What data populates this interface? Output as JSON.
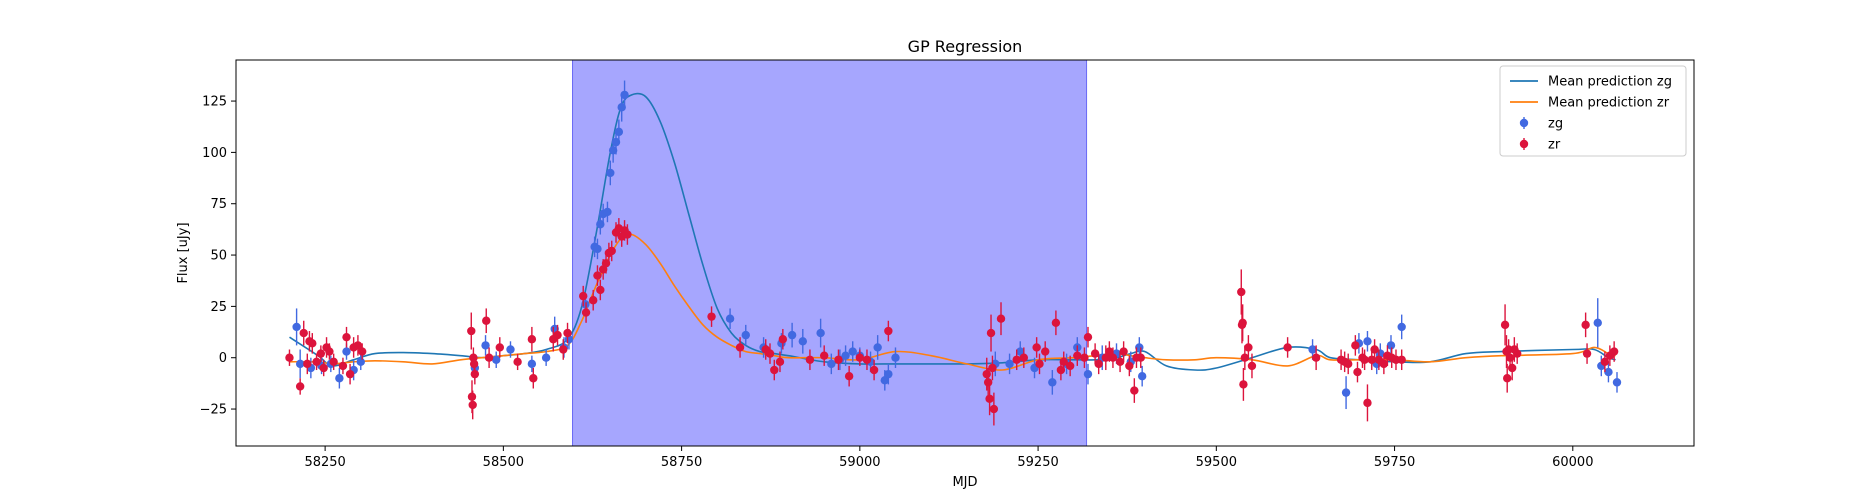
{
  "chart_data": {
    "type": "scatter",
    "title": "GP Regression",
    "xlabel": "MJD",
    "ylabel": "Flux [uJy]",
    "xlim": [
      58125,
      60170
    ],
    "ylim": [
      -43,
      145
    ],
    "xticks": [
      58250,
      58500,
      58750,
      59000,
      59250,
      59500,
      59750,
      60000
    ],
    "yticks": [
      -25,
      0,
      25,
      50,
      75,
      100,
      125
    ],
    "grid": false,
    "legend_position": "top-right",
    "highlight_span": {
      "x0": 58597,
      "x1": 59318,
      "color": "#a6a6fe"
    },
    "lines": [
      {
        "name": "Mean prediction zg",
        "color": "#1f77b4",
        "x": [
          58200,
          58240,
          58260,
          58290,
          58320,
          58360,
          58400,
          58440,
          58470,
          58500,
          58530,
          58560,
          58590,
          58610,
          58630,
          58650,
          58665,
          58680,
          58700,
          58720,
          58740,
          58760,
          58780,
          58800,
          58820,
          58840,
          58860,
          58880,
          58900,
          58950,
          59000,
          59050,
          59100,
          59150,
          59200,
          59250,
          59300,
          59330,
          59360,
          59380,
          59400,
          59430,
          59470,
          59500,
          59550,
          59600,
          59640,
          59660,
          59700,
          59750,
          59800,
          59850,
          59900,
          60000,
          60030,
          60050,
          60060
        ],
        "y": [
          10,
          1,
          -4,
          -1,
          2,
          2.5,
          2,
          1,
          0,
          1,
          2,
          4,
          9,
          25,
          60,
          100,
          122,
          128,
          127,
          115,
          95,
          70,
          45,
          24,
          12,
          6,
          3,
          2,
          1,
          -2,
          -3,
          -3,
          -3,
          -3,
          -2.5,
          -1,
          -1,
          -1,
          0,
          2,
          3,
          -4,
          -6,
          -5,
          0,
          5,
          4,
          0,
          -1,
          -2,
          -2,
          2,
          3,
          4,
          4,
          0,
          -1
        ]
      },
      {
        "name": "Mean prediction zr",
        "color": "#ff7f0e",
        "x": [
          58200,
          58240,
          58260,
          58290,
          58320,
          58360,
          58400,
          58440,
          58470,
          58500,
          58530,
          58560,
          58590,
          58610,
          58630,
          58650,
          58665,
          58680,
          58700,
          58720,
          58740,
          58760,
          58780,
          58800,
          58820,
          58840,
          58860,
          58880,
          58900,
          58950,
          59000,
          59050,
          59100,
          59150,
          59200,
          59250,
          59300,
          59330,
          59360,
          59380,
          59400,
          59430,
          59470,
          59500,
          59550,
          59600,
          59640,
          59660,
          59700,
          59750,
          59800,
          59850,
          59900,
          60000,
          60030,
          60050,
          60060
        ],
        "y": [
          -2,
          -2,
          -3,
          -2,
          -1.5,
          -2,
          -3,
          -1,
          0,
          1,
          2,
          3,
          6,
          18,
          35,
          50,
          58,
          60,
          55,
          46,
          35,
          25,
          16,
          10,
          6,
          3,
          2,
          1,
          0,
          0,
          -1,
          3,
          1,
          -3,
          -6,
          -1,
          0,
          1,
          2,
          1,
          0,
          -1,
          -1,
          0,
          -1,
          -4,
          1,
          -1,
          -1,
          -1,
          -2,
          0,
          1,
          2,
          5,
          2,
          1
        ]
      }
    ],
    "series": [
      {
        "name": "zg",
        "color": "#4169e1",
        "points": [
          [
            58210,
            15,
            9
          ],
          [
            58215,
            -3,
            7
          ],
          [
            58230,
            -5,
            5
          ],
          [
            58245,
            -4,
            4
          ],
          [
            58258,
            -3,
            4
          ],
          [
            58270,
            -10,
            5
          ],
          [
            58280,
            3,
            4
          ],
          [
            58290,
            -6,
            5
          ],
          [
            58300,
            -2,
            4
          ],
          [
            58460,
            -5,
            6
          ],
          [
            58475,
            6,
            5
          ],
          [
            58490,
            -1,
            4
          ],
          [
            58510,
            4,
            4
          ],
          [
            58540,
            -3,
            4
          ],
          [
            58560,
            0,
            4
          ],
          [
            58572,
            14,
            6
          ],
          [
            58585,
            5,
            5
          ],
          [
            58592,
            9,
            5
          ],
          [
            58615,
            26,
            5
          ],
          [
            58628,
            54,
            5
          ],
          [
            58632,
            53,
            5
          ],
          [
            58636,
            65,
            5
          ],
          [
            58640,
            70,
            5
          ],
          [
            58646,
            71,
            5
          ],
          [
            58650,
            90,
            6
          ],
          [
            58654,
            101,
            6
          ],
          [
            58658,
            105,
            6
          ],
          [
            58662,
            110,
            6
          ],
          [
            58666,
            122,
            7
          ],
          [
            58670,
            128,
            7
          ],
          [
            58818,
            19,
            5
          ],
          [
            58840,
            11,
            5
          ],
          [
            58865,
            5,
            5
          ],
          [
            58890,
            7,
            5
          ],
          [
            58905,
            11,
            6
          ],
          [
            58920,
            8,
            6
          ],
          [
            58945,
            12,
            7
          ],
          [
            58960,
            -3,
            5
          ],
          [
            58972,
            -1,
            5
          ],
          [
            58980,
            1,
            5
          ],
          [
            58990,
            3,
            5
          ],
          [
            59000,
            1,
            4
          ],
          [
            59015,
            -2,
            5
          ],
          [
            59025,
            5,
            6
          ],
          [
            59035,
            -11,
            5
          ],
          [
            59040,
            -8,
            5
          ],
          [
            59050,
            0,
            5
          ],
          [
            59190,
            -3,
            6
          ],
          [
            59210,
            -3,
            5
          ],
          [
            59225,
            3,
            5
          ],
          [
            59245,
            -5,
            5
          ],
          [
            59270,
            -12,
            6
          ],
          [
            59290,
            -3,
            5
          ],
          [
            59305,
            5,
            5
          ],
          [
            59320,
            -8,
            5
          ],
          [
            59340,
            0,
            6
          ],
          [
            59360,
            2,
            5
          ],
          [
            59380,
            -2,
            5
          ],
          [
            59392,
            5,
            5
          ],
          [
            59396,
            -9,
            5
          ],
          [
            59635,
            4,
            5
          ],
          [
            59682,
            -17,
            8
          ],
          [
            59700,
            7,
            5
          ],
          [
            59712,
            8,
            5
          ],
          [
            59725,
            -3,
            5
          ],
          [
            59730,
            2,
            5
          ],
          [
            59745,
            6,
            5
          ],
          [
            59760,
            15,
            6
          ],
          [
            60035,
            17,
            12
          ],
          [
            60040,
            -4,
            5
          ],
          [
            60050,
            -7,
            5
          ],
          [
            60062,
            -12,
            5
          ]
        ]
      },
      {
        "name": "zr",
        "color": "#dc143c",
        "points": [
          [
            58200,
            0,
            4
          ],
          [
            58215,
            -14,
            4
          ],
          [
            58220,
            12,
            6
          ],
          [
            58225,
            -3,
            5
          ],
          [
            58228,
            8,
            5
          ],
          [
            58232,
            7,
            5
          ],
          [
            58238,
            -2,
            4
          ],
          [
            58244,
            2,
            4
          ],
          [
            58248,
            -5,
            4
          ],
          [
            58252,
            5,
            5
          ],
          [
            58256,
            3,
            4
          ],
          [
            58262,
            -2,
            4
          ],
          [
            58275,
            -4,
            4
          ],
          [
            58280,
            10,
            5
          ],
          [
            58285,
            -8,
            5
          ],
          [
            58290,
            5,
            5
          ],
          [
            58296,
            6,
            5
          ],
          [
            58302,
            3,
            4
          ],
          [
            58455,
            13,
            9
          ],
          [
            58456,
            -19,
            8
          ],
          [
            58457,
            -23,
            7
          ],
          [
            58458,
            0,
            5
          ],
          [
            58459,
            -3,
            4
          ],
          [
            58460,
            -8,
            5
          ],
          [
            58476,
            18,
            6
          ],
          [
            58480,
            0,
            5
          ],
          [
            58495,
            5,
            5
          ],
          [
            58520,
            -2,
            4
          ],
          [
            58540,
            9,
            6
          ],
          [
            58542,
            -10,
            5
          ],
          [
            58570,
            9,
            6
          ],
          [
            58576,
            11,
            5
          ],
          [
            58584,
            4,
            5
          ],
          [
            58590,
            12,
            5
          ],
          [
            58612,
            30,
            5
          ],
          [
            58616,
            22,
            5
          ],
          [
            58626,
            28,
            5
          ],
          [
            58632,
            40,
            5
          ],
          [
            58636,
            33,
            5
          ],
          [
            58640,
            43,
            5
          ],
          [
            58644,
            46,
            5
          ],
          [
            58648,
            51,
            5
          ],
          [
            58652,
            52,
            5
          ],
          [
            58658,
            61,
            5
          ],
          [
            58662,
            63,
            5
          ],
          [
            58666,
            59,
            5
          ],
          [
            58670,
            62,
            5
          ],
          [
            58674,
            60,
            5
          ],
          [
            58792,
            20,
            5
          ],
          [
            58832,
            5,
            5
          ],
          [
            58868,
            4,
            5
          ],
          [
            58874,
            2,
            5
          ],
          [
            58880,
            -6,
            5
          ],
          [
            58888,
            -2,
            5
          ],
          [
            58892,
            9,
            5
          ],
          [
            58930,
            -1,
            5
          ],
          [
            58950,
            1,
            5
          ],
          [
            58970,
            -1,
            5
          ],
          [
            58985,
            -9,
            5
          ],
          [
            59000,
            0,
            4
          ],
          [
            59010,
            -1,
            5
          ],
          [
            59020,
            -6,
            5
          ],
          [
            59040,
            13,
            5
          ],
          [
            59178,
            -8,
            8
          ],
          [
            59180,
            -12,
            7
          ],
          [
            59182,
            -20,
            8
          ],
          [
            59184,
            12,
            9
          ],
          [
            59186,
            -5,
            6
          ],
          [
            59188,
            -25,
            8
          ],
          [
            59198,
            19,
            8
          ],
          [
            59220,
            -1,
            5
          ],
          [
            59230,
            0,
            5
          ],
          [
            59248,
            5,
            5
          ],
          [
            59252,
            -3,
            5
          ],
          [
            59260,
            3,
            5
          ],
          [
            59275,
            17,
            6
          ],
          [
            59282,
            -6,
            5
          ],
          [
            59286,
            -2,
            5
          ],
          [
            59295,
            -4,
            5
          ],
          [
            59305,
            1,
            5
          ],
          [
            59315,
            0,
            5
          ],
          [
            59320,
            10,
            5
          ],
          [
            59330,
            2,
            5
          ],
          [
            59335,
            -3,
            5
          ],
          [
            59345,
            0,
            6
          ],
          [
            59350,
            3,
            5
          ],
          [
            59355,
            0,
            5
          ],
          [
            59365,
            -2,
            5
          ],
          [
            59370,
            3,
            5
          ],
          [
            59378,
            -4,
            5
          ],
          [
            59385,
            -16,
            6
          ],
          [
            59388,
            0,
            5
          ],
          [
            59394,
            0,
            5
          ],
          [
            59535,
            32,
            11
          ],
          [
            59536,
            16,
            9
          ],
          [
            59537,
            17,
            9
          ],
          [
            59538,
            -13,
            8
          ],
          [
            59540,
            0,
            6
          ],
          [
            59545,
            5,
            6
          ],
          [
            59550,
            -4,
            6
          ],
          [
            59600,
            5,
            5
          ],
          [
            59640,
            0,
            6
          ],
          [
            59675,
            -1,
            5
          ],
          [
            59680,
            -2,
            5
          ],
          [
            59685,
            -3,
            5
          ],
          [
            59695,
            6,
            5
          ],
          [
            59698,
            -7,
            5
          ],
          [
            59705,
            0,
            5
          ],
          [
            59708,
            -1,
            5
          ],
          [
            59712,
            -22,
            9
          ],
          [
            59718,
            -1,
            5
          ],
          [
            59722,
            4,
            5
          ],
          [
            59728,
            -1,
            5
          ],
          [
            59735,
            -3,
            5
          ],
          [
            59740,
            1,
            5
          ],
          [
            59746,
            0,
            5
          ],
          [
            59752,
            -1,
            5
          ],
          [
            59760,
            -1,
            5
          ],
          [
            59905,
            16,
            10
          ],
          [
            59907,
            3,
            8
          ],
          [
            59908,
            -10,
            7
          ],
          [
            59910,
            4,
            5
          ],
          [
            59912,
            0,
            5
          ],
          [
            59915,
            -5,
            6
          ],
          [
            59918,
            4,
            6
          ],
          [
            59922,
            2,
            5
          ],
          [
            60018,
            16,
            6
          ],
          [
            60020,
            2,
            5
          ],
          [
            60045,
            -2,
            5
          ],
          [
            60052,
            1,
            5
          ],
          [
            60058,
            3,
            5
          ]
        ]
      }
    ]
  }
}
